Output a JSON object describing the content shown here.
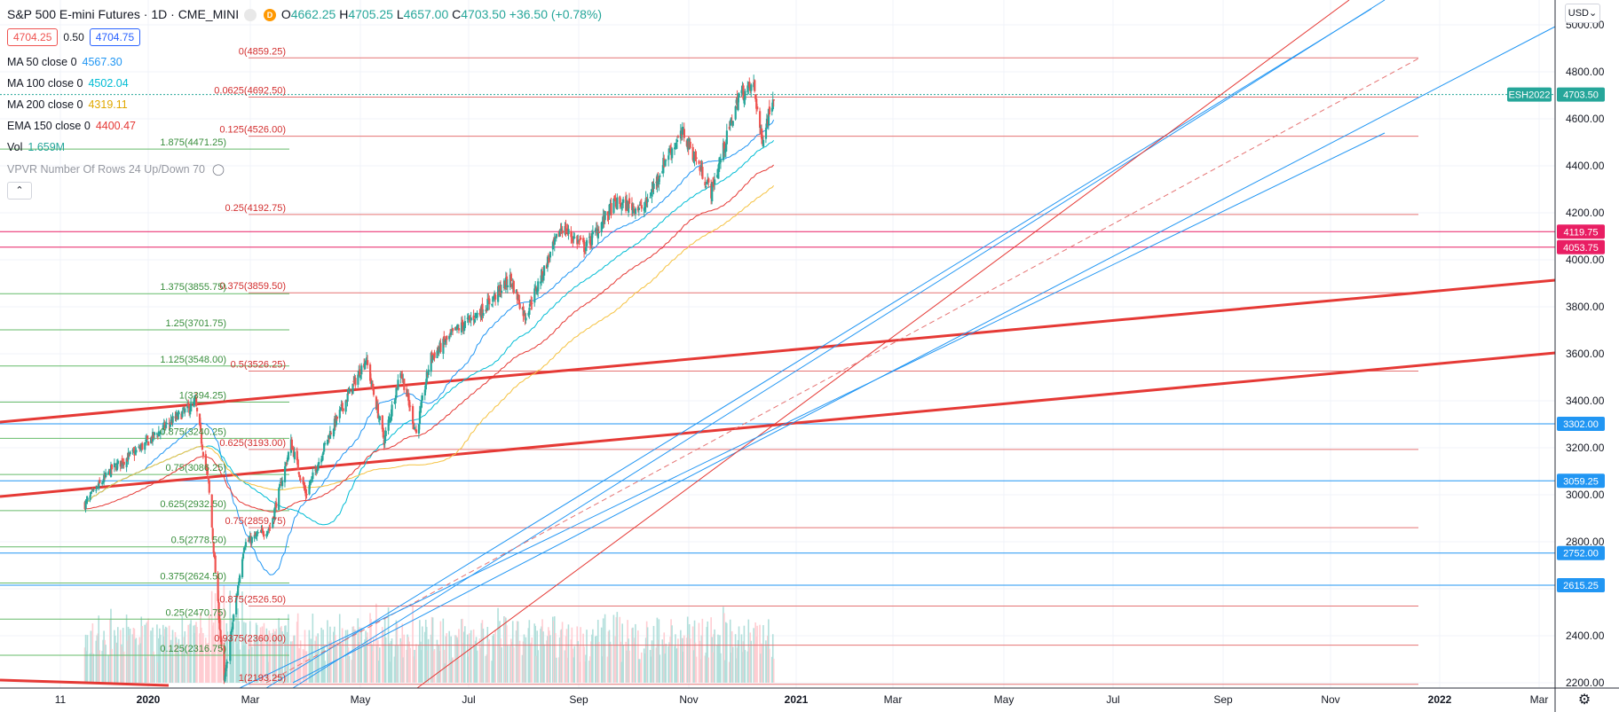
{
  "header": {
    "title": "S&P 500 E-mini Futures · 1D · CME_MINI",
    "interval_badge": "D",
    "ohlc": {
      "o_label": "O",
      "o": "4662.25",
      "h_label": "H",
      "h": "4705.25",
      "l_label": "L",
      "l": "4657.00",
      "c_label": "C",
      "c": "4703.50",
      "change": "+36.50 (+0.78%)"
    },
    "bid": "4704.25",
    "spread": "0.50",
    "ask": "4704.75"
  },
  "indicators": [
    {
      "label": "MA 50 close 0",
      "value": "4567.30",
      "color": "#2196f3"
    },
    {
      "label": "MA 100 close 0",
      "value": "4502.04",
      "color": "#00bcd4"
    },
    {
      "label": "MA 200 close 0",
      "value": "4319.11",
      "color": "#f5c241"
    },
    {
      "label": "EMA 150 close 0",
      "value": "4400.47",
      "color": "#e53935"
    },
    {
      "label": "Vol",
      "value": "1.659M",
      "color": "#26a69a"
    },
    {
      "label": "VPVR Number Of Rows 24 Up/Down 70",
      "value": "",
      "color": "#787b86"
    }
  ],
  "controls": {
    "currency": "USD",
    "collapse_icon": "chevron-up-icon",
    "settings_icon": "gear-icon",
    "visibility_icon": "eye-off-icon"
  },
  "colors": {
    "up": "#26a69a",
    "down": "#ef5350",
    "grid": "#f0f3fa",
    "fib_red": "#d32f2f",
    "fib_green": "#388e3c",
    "axis_text": "#131722"
  },
  "chart_data": {
    "type": "candlestick",
    "y_axis": {
      "ticks": [
        2200,
        2400,
        2600,
        2800,
        3000,
        3200,
        3400,
        3600,
        3800,
        4000,
        4200,
        4400,
        4600,
        4800,
        5000
      ],
      "ylim": [
        2150,
        5050
      ]
    },
    "x_axis": {
      "ticks": [
        "11",
        "2020",
        "Mar",
        "May",
        "Jul",
        "Sep",
        "Nov",
        "2021",
        "Mar",
        "May",
        "Jul",
        "Sep",
        "Nov",
        "2022",
        "Mar"
      ]
    },
    "price_labels": [
      {
        "text": "ESH2022",
        "value": 4703.5,
        "color": "#26a69a"
      },
      {
        "text": "4703.50",
        "value": 4703.5,
        "color": "#26a69a"
      },
      {
        "text": "4119.75",
        "value": 4119.75,
        "color": "#e91e63"
      },
      {
        "text": "4053.75",
        "value": 4053.75,
        "color": "#e91e63"
      },
      {
        "text": "3302.00",
        "value": 3302,
        "color": "#2196f3"
      },
      {
        "text": "3059.25",
        "value": 3059.25,
        "color": "#2196f3"
      },
      {
        "text": "2752.00",
        "value": 2752,
        "color": "#2196f3"
      },
      {
        "text": "2615.25",
        "value": 2615.25,
        "color": "#2196f3"
      }
    ],
    "fib_red": [
      {
        "text": "0(4859.25)",
        "value": 4859.25
      },
      {
        "text": "0.0625(4692.50)",
        "value": 4692.5
      },
      {
        "text": "0.125(4526.00)",
        "value": 4526
      },
      {
        "text": "0.25(4192.75)",
        "value": 4192.75
      },
      {
        "text": "0.375(3859.50)",
        "value": 3859.5
      },
      {
        "text": "0.5(3526.25)",
        "value": 3526.25
      },
      {
        "text": "0.625(3193.00)",
        "value": 3193
      },
      {
        "text": "0.75(2859.75)",
        "value": 2859.75
      },
      {
        "text": "0.875(2526.50)",
        "value": 2526.5
      },
      {
        "text": "0.9375(2360.00)",
        "value": 2360
      },
      {
        "text": "1(2193.25)",
        "value": 2193.25
      }
    ],
    "fib_green": [
      {
        "text": "1.875(4471.25)",
        "value": 4471.25
      },
      {
        "text": "1.375(3855.75)",
        "value": 3855.75
      },
      {
        "text": "1.25(3701.75)",
        "value": 3701.75
      },
      {
        "text": "1.125(3548.00)",
        "value": 3548
      },
      {
        "text": "1(3394.25)",
        "value": 3394.25
      },
      {
        "text": "0.875(3240.25)",
        "value": 3240.25
      },
      {
        "text": "0.75(3086.25)",
        "value": 3086.25
      },
      {
        "text": "0.625(2932.50)",
        "value": 2932.5
      },
      {
        "text": "0.5(2778.50)",
        "value": 2778.5
      },
      {
        "text": "0.375(2624.50)",
        "value": 2624.5
      },
      {
        "text": "0.25(2470.75)",
        "value": 2470.75
      },
      {
        "text": "0.125(2316.75)",
        "value": 2316.75
      }
    ],
    "price_path": [
      {
        "date": "2019-10-15",
        "close": 2960
      },
      {
        "date": "2019-11-15",
        "close": 3110
      },
      {
        "date": "2019-12-15",
        "close": 3190
      },
      {
        "date": "2020-01-15",
        "close": 3290
      },
      {
        "date": "2020-02-19",
        "close": 3390
      },
      {
        "date": "2020-03-05",
        "close": 3050
      },
      {
        "date": "2020-03-23",
        "close": 2200
      },
      {
        "date": "2020-04-15",
        "close": 2790
      },
      {
        "date": "2020-05-15",
        "close": 2860
      },
      {
        "date": "2020-06-08",
        "close": 3220
      },
      {
        "date": "2020-06-25",
        "close": 3000
      },
      {
        "date": "2020-07-20",
        "close": 3240
      },
      {
        "date": "2020-09-02",
        "close": 3580
      },
      {
        "date": "2020-09-23",
        "close": 3230
      },
      {
        "date": "2020-10-12",
        "close": 3530
      },
      {
        "date": "2020-10-30",
        "close": 3260
      },
      {
        "date": "2020-11-15",
        "close": 3580
      },
      {
        "date": "2020-12-15",
        "close": 3700
      },
      {
        "date": "2021-01-15",
        "close": 3790
      },
      {
        "date": "2021-02-15",
        "close": 3920
      },
      {
        "date": "2021-03-04",
        "close": 3760
      },
      {
        "date": "2021-04-15",
        "close": 4140
      },
      {
        "date": "2021-05-12",
        "close": 4050
      },
      {
        "date": "2021-06-15",
        "close": 4240
      },
      {
        "date": "2021-07-19",
        "close": 4220
      },
      {
        "date": "2021-08-15",
        "close": 4450
      },
      {
        "date": "2021-09-02",
        "close": 4540
      },
      {
        "date": "2021-10-04",
        "close": 4290
      },
      {
        "date": "2021-11-05",
        "close": 4700
      },
      {
        "date": "2021-11-22",
        "close": 4740
      },
      {
        "date": "2021-12-01",
        "close": 4510
      },
      {
        "date": "2021-12-15",
        "close": 4703.5
      }
    ]
  }
}
